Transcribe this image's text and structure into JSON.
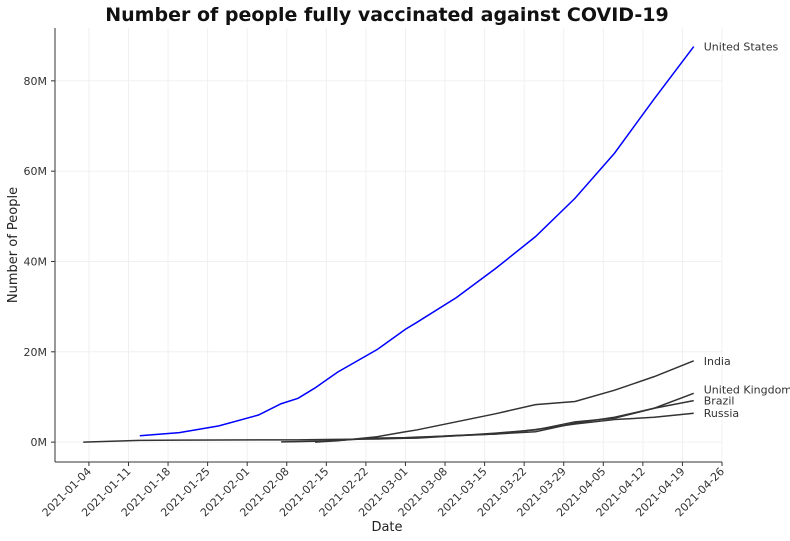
{
  "chart_data": {
    "type": "line",
    "title": "Number of people fully vaccinated against COVID-19",
    "x_label": "Date",
    "y_label": "Number of People",
    "x": [
      "2021-01-03",
      "2021-01-13",
      "2021-01-20",
      "2021-01-27",
      "2021-02-03",
      "2021-02-07",
      "2021-02-10",
      "2021-02-13",
      "2021-02-17",
      "2021-02-24",
      "2021-03-01",
      "2021-03-03",
      "2021-03-10",
      "2021-03-17",
      "2021-03-24",
      "2021-03-31",
      "2021-04-07",
      "2021-04-14",
      "2021-04-21"
    ],
    "series": [
      {
        "name": "United States",
        "color": "#0000ff",
        "values": [
          null,
          1400000,
          2100000,
          3600000,
          6000000,
          8500000,
          9700000,
          12000000,
          15500000,
          20500000,
          25000000,
          26500000,
          32000000,
          38500000,
          45500000,
          54000000,
          64000000,
          76000000,
          87600000
        ]
      },
      {
        "name": "India",
        "color": "#333333",
        "values": [
          null,
          null,
          null,
          null,
          null,
          null,
          null,
          0,
          300000,
          1200000,
          2300000,
          2700000,
          4500000,
          6300000,
          8300000,
          9000000,
          11500000,
          14500000,
          18000000
        ]
      },
      {
        "name": "United Kingdom",
        "color": "#333333",
        "values": [
          0,
          400000,
          450000,
          480000,
          500000,
          500000,
          500000,
          550000,
          600000,
          700000,
          850000,
          900000,
          1400000,
          1800000,
          2300000,
          4200000,
          5500000,
          7500000,
          10800000
        ]
      },
      {
        "name": "Brazil",
        "color": "#333333",
        "values": [
          null,
          null,
          null,
          null,
          null,
          50000,
          100000,
          200000,
          400000,
          900000,
          1000000,
          1100000,
          1400000,
          2000000,
          2700000,
          4500000,
          5300000,
          7500000,
          9200000
        ]
      },
      {
        "name": "Russia",
        "color": "#333333",
        "values": [
          null,
          null,
          null,
          null,
          null,
          null,
          null,
          null,
          null,
          null,
          900000,
          1000000,
          1500000,
          1800000,
          2800000,
          4000000,
          5000000,
          5500000,
          6400000
        ]
      }
    ],
    "xlim": [
      "2020-12-29",
      "2021-04-26"
    ],
    "xticks": [
      "2021-01-04",
      "2021-01-11",
      "2021-01-18",
      "2021-01-25",
      "2021-02-01",
      "2021-02-08",
      "2021-02-15",
      "2021-02-22",
      "2021-03-01",
      "2021-03-08",
      "2021-03-15",
      "2021-03-22",
      "2021-03-29",
      "2021-04-05",
      "2021-04-12",
      "2021-04-19",
      "2021-04-26"
    ],
    "ylim": [
      -4400000,
      91700000
    ],
    "yticks": [
      {
        "value": 0,
        "label": "0M"
      },
      {
        "value": 20000000,
        "label": "20M"
      },
      {
        "value": 40000000,
        "label": "40M"
      },
      {
        "value": 60000000,
        "label": "60M"
      },
      {
        "value": 80000000,
        "label": "80M"
      }
    ],
    "grid": true
  }
}
